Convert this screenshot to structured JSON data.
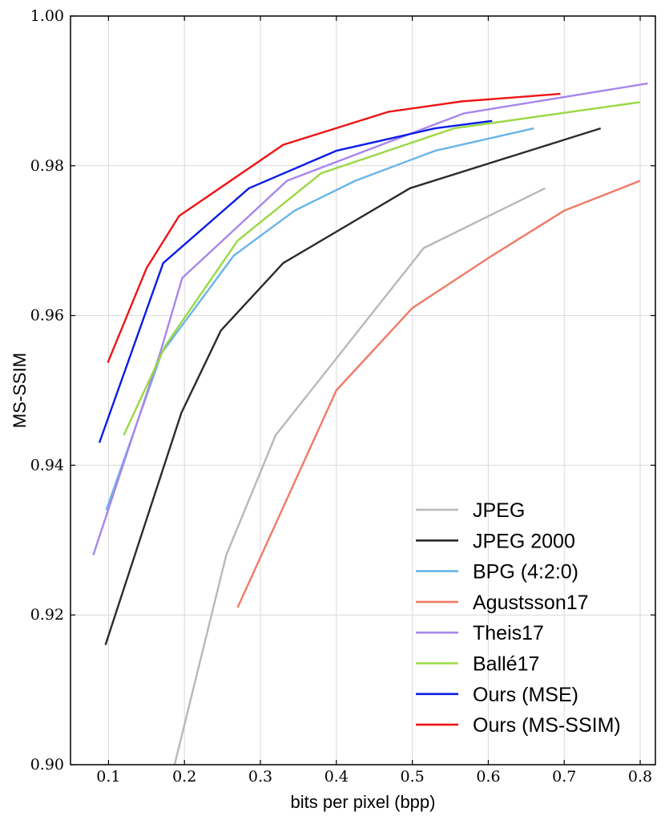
{
  "chart_data": {
    "type": "line",
    "title": "",
    "xlabel": "bits per pixel (bpp)",
    "ylabel": "MS-SSIM",
    "xlim": [
      0.05,
      0.82
    ],
    "ylim": [
      0.9,
      1.0
    ],
    "x_ticks": [
      0.1,
      0.2,
      0.3,
      0.4,
      0.5,
      0.6,
      0.7,
      0.8
    ],
    "x_tick_labels": [
      "0.1",
      "0.2",
      "0.3",
      "0.4",
      "0.5",
      "0.6",
      "0.7",
      "0.8"
    ],
    "y_ticks": [
      0.9,
      0.92,
      0.94,
      0.96,
      0.98,
      1.0
    ],
    "y_tick_labels": [
      "0.90",
      "0.92",
      "0.94",
      "0.96",
      "0.98",
      "1.00"
    ],
    "grid": true,
    "legend_position": "bottom-right",
    "series": [
      {
        "name": "JPEG",
        "color": "#b8b8b8",
        "x": [
          0.187,
          0.255,
          0.32,
          0.515,
          0.675
        ],
        "y": [
          0.9,
          0.928,
          0.944,
          0.969,
          0.977
        ]
      },
      {
        "name": "JPEG 2000",
        "color": "#2b2b2b",
        "x": [
          0.096,
          0.196,
          0.248,
          0.33,
          0.497,
          0.748
        ],
        "y": [
          0.916,
          0.947,
          0.958,
          0.967,
          0.977,
          0.985
        ]
      },
      {
        "name": "BPG (4:2:0)",
        "color": "#6ab4e8",
        "x": [
          0.097,
          0.17,
          0.265,
          0.345,
          0.425,
          0.53,
          0.66
        ],
        "y": [
          0.934,
          0.955,
          0.968,
          0.974,
          0.978,
          0.982,
          0.985
        ]
      },
      {
        "name": "Agustsson17",
        "color": "#f07a66",
        "x": [
          0.27,
          0.4,
          0.5,
          0.605,
          0.7,
          0.8
        ],
        "y": [
          0.921,
          0.95,
          0.961,
          0.968,
          0.974,
          0.978
        ]
      },
      {
        "name": "Theis17",
        "color": "#a886ec",
        "x": [
          0.08,
          0.168,
          0.197,
          0.335,
          0.568,
          0.81
        ],
        "y": [
          0.928,
          0.955,
          0.965,
          0.978,
          0.987,
          0.991
        ]
      },
      {
        "name": "Ballé17",
        "color": "#9ad844",
        "x": [
          0.12,
          0.175,
          0.27,
          0.38,
          0.555,
          0.8
        ],
        "y": [
          0.944,
          0.956,
          0.97,
          0.979,
          0.985,
          0.9885
        ]
      },
      {
        "name": "Ours (MSE)",
        "color": "#0a1ce8",
        "x": [
          0.088,
          0.172,
          0.285,
          0.4,
          0.53,
          0.605
        ],
        "y": [
          0.943,
          0.967,
          0.977,
          0.982,
          0.985,
          0.986
        ]
      },
      {
        "name": "Ours (MS-SSIM)",
        "color": "#ee1414",
        "x": [
          0.099,
          0.15,
          0.193,
          0.33,
          0.468,
          0.565,
          0.695
        ],
        "y": [
          0.9537,
          0.9663,
          0.9733,
          0.9828,
          0.9872,
          0.9886,
          0.9896
        ]
      }
    ]
  }
}
